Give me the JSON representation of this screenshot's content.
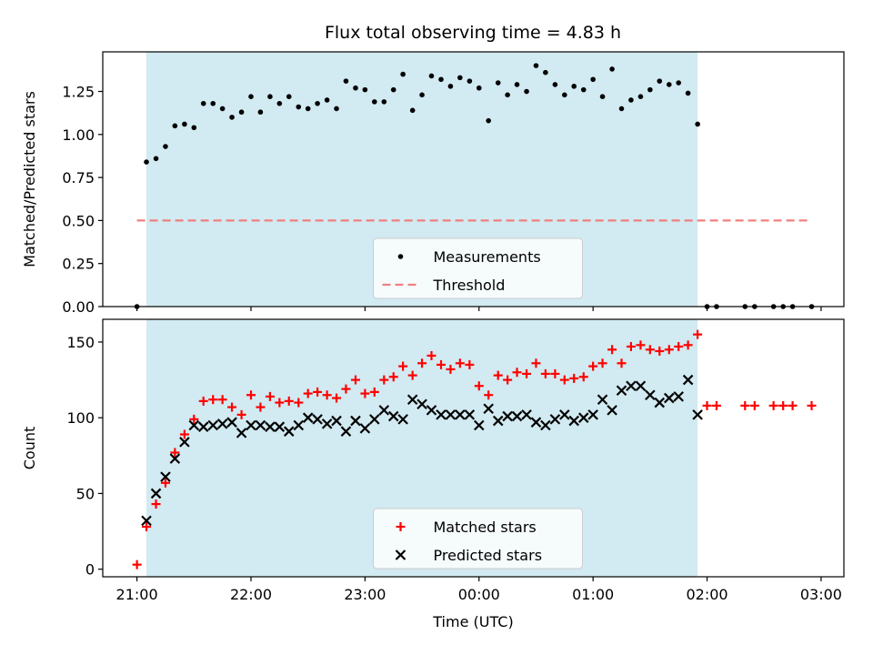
{
  "figure": {
    "title": "Flux total observing time = 4.83 h"
  },
  "chart_data": [
    {
      "type": "scatter",
      "panel": "top",
      "title": "Flux total observing time = 4.83 h",
      "xlabel": "",
      "ylabel": "Matched/Predicted stars",
      "x_unit": "hours since 21:00 UTC",
      "xlim": [
        -0.3,
        6.2
      ],
      "ylim": [
        0,
        1.48
      ],
      "yticks": [
        0.0,
        0.25,
        0.5,
        0.75,
        1.0,
        1.25
      ],
      "ytick_labels": [
        "0.00",
        "0.25",
        "0.50",
        "0.75",
        "1.00",
        "1.25"
      ],
      "xticks": [
        0,
        1,
        2,
        3,
        4,
        5,
        6
      ],
      "xtick_labels": [
        "",
        "",
        "",
        "",
        "",
        "",
        ""
      ],
      "shaded_region": {
        "x_start": 0.083,
        "x_end": 4.917,
        "color": "#add8e6"
      },
      "legend": {
        "placement": "lower center",
        "entries": [
          "Measurements",
          "Threshold"
        ]
      },
      "series": [
        {
          "name": "Measurements",
          "marker": "dot",
          "color": "#000000",
          "x": [
            0.0,
            0.083,
            0.167,
            0.25,
            0.333,
            0.417,
            0.5,
            0.583,
            0.667,
            0.75,
            0.833,
            0.917,
            1.0,
            1.083,
            1.167,
            1.25,
            1.333,
            1.417,
            1.5,
            1.583,
            1.667,
            1.75,
            1.833,
            1.917,
            2.0,
            2.083,
            2.167,
            2.25,
            2.333,
            2.417,
            2.5,
            2.583,
            2.667,
            2.75,
            2.833,
            2.917,
            3.0,
            3.083,
            3.167,
            3.25,
            3.333,
            3.417,
            3.5,
            3.583,
            3.667,
            3.75,
            3.833,
            3.917,
            4.0,
            4.083,
            4.167,
            4.25,
            4.333,
            4.417,
            4.5,
            4.583,
            4.667,
            4.75,
            4.833,
            4.917,
            5.0,
            5.083,
            5.333,
            5.417,
            5.583,
            5.667,
            5.75,
            5.917
          ],
          "y": [
            0.0,
            0.84,
            0.86,
            0.93,
            1.05,
            1.06,
            1.04,
            1.18,
            1.18,
            1.15,
            1.1,
            1.13,
            1.22,
            1.13,
            1.22,
            1.18,
            1.22,
            1.16,
            1.15,
            1.18,
            1.2,
            1.15,
            1.31,
            1.27,
            1.26,
            1.19,
            1.19,
            1.26,
            1.35,
            1.14,
            1.23,
            1.34,
            1.32,
            1.28,
            1.33,
            1.31,
            1.27,
            1.08,
            1.3,
            1.23,
            1.29,
            1.25,
            1.4,
            1.36,
            1.29,
            1.23,
            1.28,
            1.26,
            1.32,
            1.22,
            1.38,
            1.15,
            1.2,
            1.22,
            1.26,
            1.31,
            1.29,
            1.3,
            1.24,
            1.06,
            0.0,
            0.0,
            0.0,
            0.0,
            0.0,
            0.0,
            0.0,
            0.0
          ]
        },
        {
          "name": "Threshold",
          "marker": "dashed-line",
          "color": "#f08080",
          "x": [
            0.0,
            5.917
          ],
          "y": [
            0.5,
            0.5
          ]
        }
      ]
    },
    {
      "type": "scatter",
      "panel": "bottom",
      "xlabel": "Time (UTC)",
      "ylabel": "Count",
      "x_unit": "hours since 21:00 UTC",
      "xlim": [
        -0.3,
        6.2
      ],
      "ylim": [
        -5,
        165
      ],
      "yticks": [
        0,
        50,
        100,
        150
      ],
      "ytick_labels": [
        "0",
        "50",
        "100",
        "150"
      ],
      "xticks": [
        0,
        1,
        2,
        3,
        4,
        5,
        6
      ],
      "xtick_labels": [
        "21:00",
        "22:00",
        "23:00",
        "00:00",
        "01:00",
        "02:00",
        "03:00"
      ],
      "shaded_region": {
        "x_start": 0.083,
        "x_end": 4.917,
        "color": "#add8e6"
      },
      "legend": {
        "placement": "lower center",
        "entries": [
          "Matched stars",
          "Predicted stars"
        ]
      },
      "series": [
        {
          "name": "Matched stars",
          "marker": "plus",
          "color": "#ff0000",
          "x": [
            0.0,
            0.083,
            0.167,
            0.25,
            0.333,
            0.417,
            0.5,
            0.583,
            0.667,
            0.75,
            0.833,
            0.917,
            1.0,
            1.083,
            1.167,
            1.25,
            1.333,
            1.417,
            1.5,
            1.583,
            1.667,
            1.75,
            1.833,
            1.917,
            2.0,
            2.083,
            2.167,
            2.25,
            2.333,
            2.417,
            2.5,
            2.583,
            2.667,
            2.75,
            2.833,
            2.917,
            3.0,
            3.083,
            3.167,
            3.25,
            3.333,
            3.417,
            3.5,
            3.583,
            3.667,
            3.75,
            3.833,
            3.917,
            4.0,
            4.083,
            4.167,
            4.25,
            4.333,
            4.417,
            4.5,
            4.583,
            4.667,
            4.75,
            4.833,
            4.917,
            5.0,
            5.083,
            5.333,
            5.417,
            5.583,
            5.667,
            5.75,
            5.917
          ],
          "y": [
            3,
            28,
            43,
            57,
            77,
            89,
            99,
            111,
            112,
            112,
            107,
            102,
            115,
            107,
            114,
            110,
            111,
            110,
            116,
            117,
            115,
            113,
            119,
            125,
            116,
            117,
            125,
            127,
            134,
            128,
            136,
            141,
            135,
            132,
            136,
            135,
            121,
            115,
            128,
            125,
            130,
            129,
            136,
            129,
            129,
            125,
            126,
            127,
            134,
            136,
            145,
            136,
            147,
            148,
            145,
            144,
            145,
            147,
            148,
            155,
            108,
            108,
            108,
            108,
            108,
            108,
            108,
            108
          ]
        },
        {
          "name": "Predicted stars",
          "marker": "x",
          "color": "#000000",
          "x": [
            0.083,
            0.167,
            0.25,
            0.333,
            0.417,
            0.5,
            0.583,
            0.667,
            0.75,
            0.833,
            0.917,
            1.0,
            1.083,
            1.167,
            1.25,
            1.333,
            1.417,
            1.5,
            1.583,
            1.667,
            1.75,
            1.833,
            1.917,
            2.0,
            2.083,
            2.167,
            2.25,
            2.333,
            2.417,
            2.5,
            2.583,
            2.667,
            2.75,
            2.833,
            2.917,
            3.0,
            3.083,
            3.167,
            3.25,
            3.333,
            3.417,
            3.5,
            3.583,
            3.667,
            3.75,
            3.833,
            3.917,
            4.0,
            4.083,
            4.167,
            4.25,
            4.333,
            4.417,
            4.5,
            4.583,
            4.667,
            4.75,
            4.833,
            4.917
          ],
          "y": [
            32,
            50,
            61,
            73,
            84,
            95,
            94,
            95,
            96,
            97,
            90,
            95,
            95,
            94,
            94,
            91,
            95,
            100,
            99,
            96,
            98,
            91,
            98,
            93,
            99,
            105,
            101,
            99,
            112,
            109,
            105,
            102,
            102,
            102,
            102,
            95,
            106,
            98,
            101,
            101,
            102,
            97,
            95,
            99,
            102,
            98,
            100,
            102,
            112,
            105,
            118,
            121,
            121,
            115,
            110,
            113,
            114,
            125,
            102
          ]
        }
      ]
    }
  ]
}
